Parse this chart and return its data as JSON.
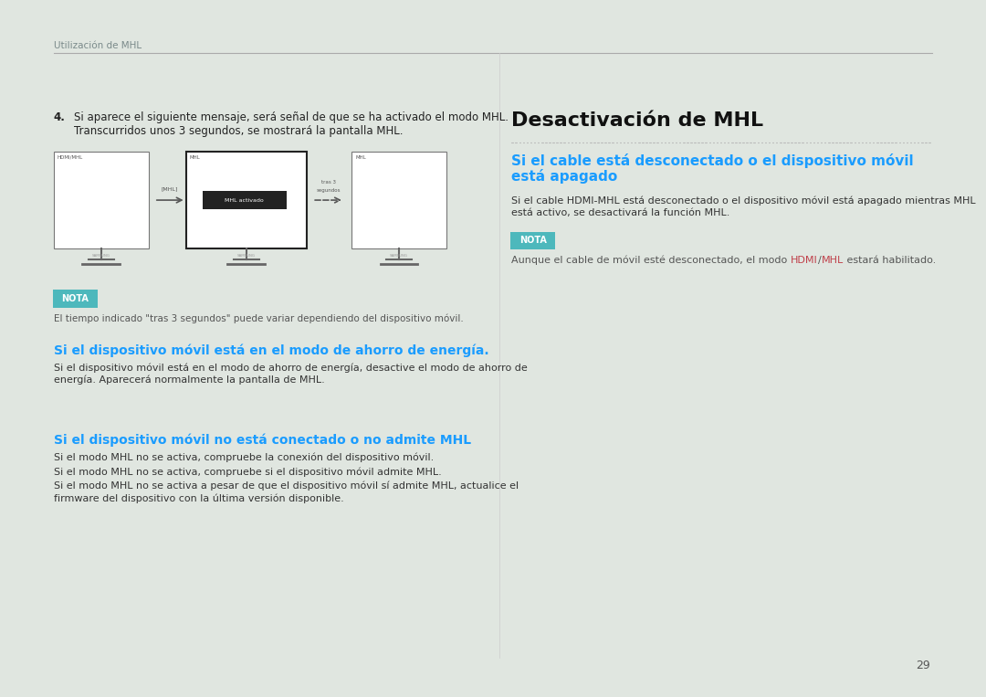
{
  "bg_color": "#e0e6e0",
  "page_bg": "#ffffff",
  "header_text": "Utilización de MHL",
  "header_color": "#7a8a8a",
  "header_line_color": "#aaaaaa",
  "page_number": "29",
  "page_number_color": "#555555",
  "step4_num": "4.",
  "step4_line1": "Si aparece el siguiente mensaje, será señal de que se ha activado el modo MHL.",
  "step4_line2": "Transcurridos unos 3 segundos, se mostrará la pantalla MHL.",
  "step4_color": "#222222",
  "nota_bg": "#4db8bc",
  "nota_text_color": "#ffffff",
  "nota_label": "NOTA",
  "nota1_text": "El tiempo indicado \"tras 3 segundos\" puede variar dependiendo del dispositivo móvil.",
  "nota1_color": "#555555",
  "section1_title": "Si el dispositivo móvil está en el modo de ahorro de energía.",
  "section1_color": "#1a9cff",
  "section1_body1": "Si el dispositivo móvil está en el modo de ahorro de energía, desactive el modo de ahorro de",
  "section1_body2": "energía. Aparecerá normalmente la pantalla de MHL.",
  "section1_body_color": "#333333",
  "section2_title": "Si el dispositivo móvil no está conectado o no admite MHL",
  "section2_color": "#1a9cff",
  "section2_body1": "Si el modo MHL no se activa, compruebe la conexión del dispositivo móvil.",
  "section2_body2": "Si el modo MHL no se activa, compruebe si el dispositivo móvil admite MHL.",
  "section2_body3a": "Si el modo MHL no se activa a pesar de que el dispositivo móvil sí admite MHL, actualice el",
  "section2_body3b": "firmware del dispositivo con la última versión disponible.",
  "section2_body_color": "#333333",
  "right_title": "Desactivación de MHL",
  "right_title_color": "#111111",
  "right_section_title1": "Si el cable está desconectado o el dispositivo móvil",
  "right_section_title2": "está apagado",
  "right_section_title_color": "#1a9cff",
  "right_section_body1": "Si el cable HDMI-MHL está desconectado o el dispositivo móvil está apagado mientras MHL",
  "right_section_body2": "está activo, se desactivará la función MHL.",
  "right_section_body_color": "#333333",
  "nota2_label": "NOTA",
  "nota2_bg": "#4db8bc",
  "nota2_text_color": "#ffffff",
  "nota2_prefix": "Aunque el cable de móvil esté desconectado, el modo ",
  "nota2_hdmi": "HDMI",
  "nota2_slash": "/",
  "nota2_mhl": "MHL",
  "nota2_suffix": " estará habilitado.",
  "nota2_link_color": "#c0404a",
  "nota2_text_color2": "#555555",
  "monitor1_label": "HDMI/MHL",
  "monitor2_label": "MHL",
  "monitor3_label": "MHL",
  "monitor_arrow1_label": "[MHL]",
  "monitor_popup_text": "MHL activado",
  "monitor_arrow2_label1": "tras 3",
  "monitor_arrow2_label2": "segundos",
  "monitor_line_color": "#666666",
  "monitor_border_color": "#333333",
  "divider_color": "#cccccc"
}
